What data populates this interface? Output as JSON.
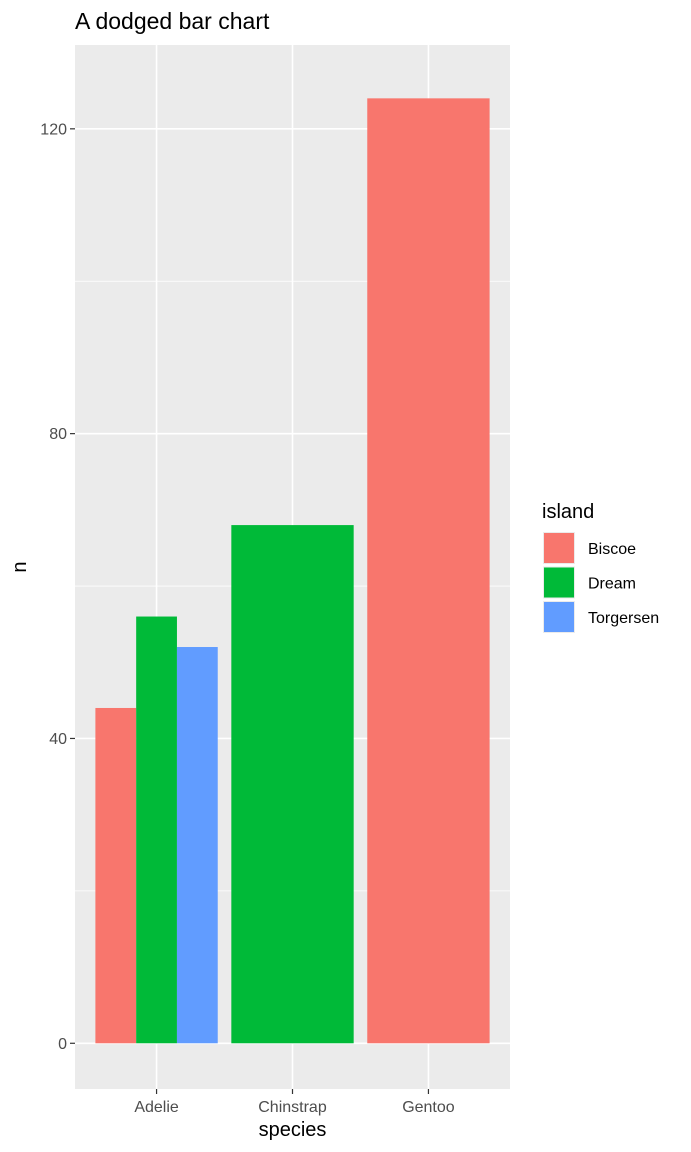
{
  "chart_data": {
    "type": "bar",
    "position": "dodge",
    "title": "A dodged bar chart",
    "xlabel": "species",
    "ylabel": "n",
    "categories": [
      "Adelie",
      "Chinstrap",
      "Gentoo"
    ],
    "ylim": [
      -6,
      131
    ],
    "yticks": [
      0,
      40,
      80,
      120
    ],
    "grid": true,
    "legend": {
      "title": "island",
      "placement": "right",
      "entries": [
        "Biscoe",
        "Dream",
        "Torgersen"
      ]
    },
    "colors": {
      "Biscoe": "#F8766D",
      "Dream": "#00BA38",
      "Torgersen": "#619CFF",
      "panel_background": "#EBEBEB",
      "grid_line": "#FFFFFF"
    },
    "groups": [
      {
        "category": "Adelie",
        "bars": [
          {
            "island": "Biscoe",
            "value": 44
          },
          {
            "island": "Dream",
            "value": 56
          },
          {
            "island": "Torgersen",
            "value": 52
          }
        ]
      },
      {
        "category": "Chinstrap",
        "bars": [
          {
            "island": "Dream",
            "value": 68
          }
        ]
      },
      {
        "category": "Gentoo",
        "bars": [
          {
            "island": "Biscoe",
            "value": 124
          }
        ]
      }
    ]
  }
}
